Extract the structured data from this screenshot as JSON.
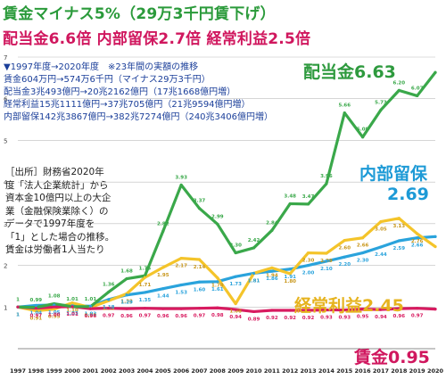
{
  "title_line1": "賃金マイナス5%（29万3千円賃下げ）",
  "title_line2": "配当金6.6倍 内部留保2.7倍 経常利益2.5倍",
  "notes": [
    "▼1997年度→2020年度　※23年間の実額の推移",
    "賃金604万円→574万6千円（マイナス29万3千円）",
    "配当金3兆493億円→20兆2162億円（17兆1668億円増）",
    "経常利益15兆1111億円→37兆705億円（21兆9594億円増）",
    "内部留保142兆3867億円→382兆7274億円（240兆3406億円増）"
  ],
  "source": [
    "［出所］財務省2020年",
    "度「法人企業統計」から",
    "資本金10億円以上の大企",
    "業（金融保険業除く）の",
    "データで1997年度を",
    "「1」とした場合の推移。",
    "賃金は労働者1人当たり"
  ],
  "labels": {
    "dividend": "配当金6.63",
    "retained": "内部留保",
    "retained_value": "2.69",
    "profit": "経常利益2.45",
    "wages": "賃金0.95"
  },
  "chart_data": {
    "type": "line",
    "x": [
      "1997",
      "1998",
      "1999",
      "2000",
      "2001",
      "2002",
      "2003",
      "2004",
      "2005",
      "2006",
      "2007",
      "2008",
      "2009",
      "2010",
      "2011",
      "2012",
      "2013",
      "2014",
      "2015",
      "2016",
      "2017",
      "2018",
      "2019",
      "2020"
    ],
    "ylim": [
      0,
      7
    ],
    "yticks": [
      1,
      2,
      3,
      4,
      5,
      6,
      7
    ],
    "grid": true,
    "series": [
      {
        "name": "配当金",
        "color": "#3aa84a",
        "values": [
          1,
          0.99,
          1.08,
          1.01,
          1.01,
          1.36,
          1.68,
          1.75,
          2.82,
          3.93,
          3.37,
          2.99,
          2.3,
          2.42,
          2.84,
          3.48,
          3.47,
          3.96,
          5.66,
          5.08,
          5.73,
          6.2,
          6.07,
          6.63
        ],
        "labels": [
          "1",
          "0.99",
          "1.08",
          "1.01",
          "1.01",
          "1.36",
          "1.68",
          "1.75",
          "2.82",
          "3.93",
          "3.37",
          "2.99",
          "2.30",
          "2.42",
          "2.84",
          "3.48",
          "3.47",
          "3.96",
          "5.66",
          "5.08",
          "5.73",
          "6.20",
          "6.07",
          ""
        ]
      },
      {
        "name": "経常利益",
        "color": "#f4c42a",
        "values": [
          1,
          0.91,
          0.95,
          1.1,
          0.99,
          1.15,
          1.32,
          1.71,
          1.95,
          2.17,
          2.14,
          1.7,
          1.08,
          1.81,
          1.94,
          1.8,
          2.3,
          2.29,
          2.6,
          2.66,
          3.05,
          3.13,
          2.76,
          2.45
        ],
        "labels": [
          "1",
          "0.91",
          "0.95",
          "1.10",
          "0.99",
          "1.15",
          "1.32",
          "1.71",
          "1.95",
          "2.17",
          "2.14",
          "1.70",
          "1.08",
          "1.81",
          "1.94",
          "1.80",
          "2.30",
          "2.29",
          "2.60",
          "2.66",
          "3.05",
          "3.13",
          "2.76",
          ""
        ]
      },
      {
        "name": "内部留保",
        "color": "#2aa3dc",
        "values": [
          1,
          1.04,
          1.05,
          1.03,
          1.02,
          1.18,
          1.29,
          1.35,
          1.44,
          1.53,
          1.6,
          1.61,
          1.73,
          1.81,
          1.86,
          1.91,
          2.0,
          2.1,
          2.2,
          2.3,
          2.44,
          2.59,
          2.66,
          2.69
        ],
        "labels": [
          "1",
          "1.04",
          "1.05",
          "1.03",
          "1.02",
          "1.18",
          "1.29",
          "1.35",
          "1.44",
          "1.53",
          "1.60",
          "1.61",
          "1.73",
          "1.81",
          "1.86",
          "1.91",
          "2.00",
          "2.10",
          "2.20",
          "2.30",
          "2.44",
          "2.59",
          "2.66",
          ""
        ]
      },
      {
        "name": "賃金",
        "color": "#d81b60",
        "values": [
          1,
          0.97,
          1.0,
          1.01,
          0.96,
          0.97,
          0.96,
          0.97,
          0.96,
          0.96,
          0.97,
          0.98,
          0.94,
          0.89,
          0.92,
          0.92,
          0.92,
          0.93,
          0.93,
          0.95,
          0.94,
          0.96,
          0.97,
          0.95
        ],
        "labels": [
          "",
          "0.97",
          "1.00",
          "1.01",
          "0.96",
          "0.97",
          "0.96",
          "0.97",
          "0.96",
          "0.96",
          "0.97",
          "0.98",
          "0.94",
          "0.89",
          "0.92",
          "0.92",
          "0.92",
          "0.93",
          "0.93",
          "0.95",
          "0.94",
          "0.96",
          "0.97",
          ""
        ]
      }
    ]
  }
}
